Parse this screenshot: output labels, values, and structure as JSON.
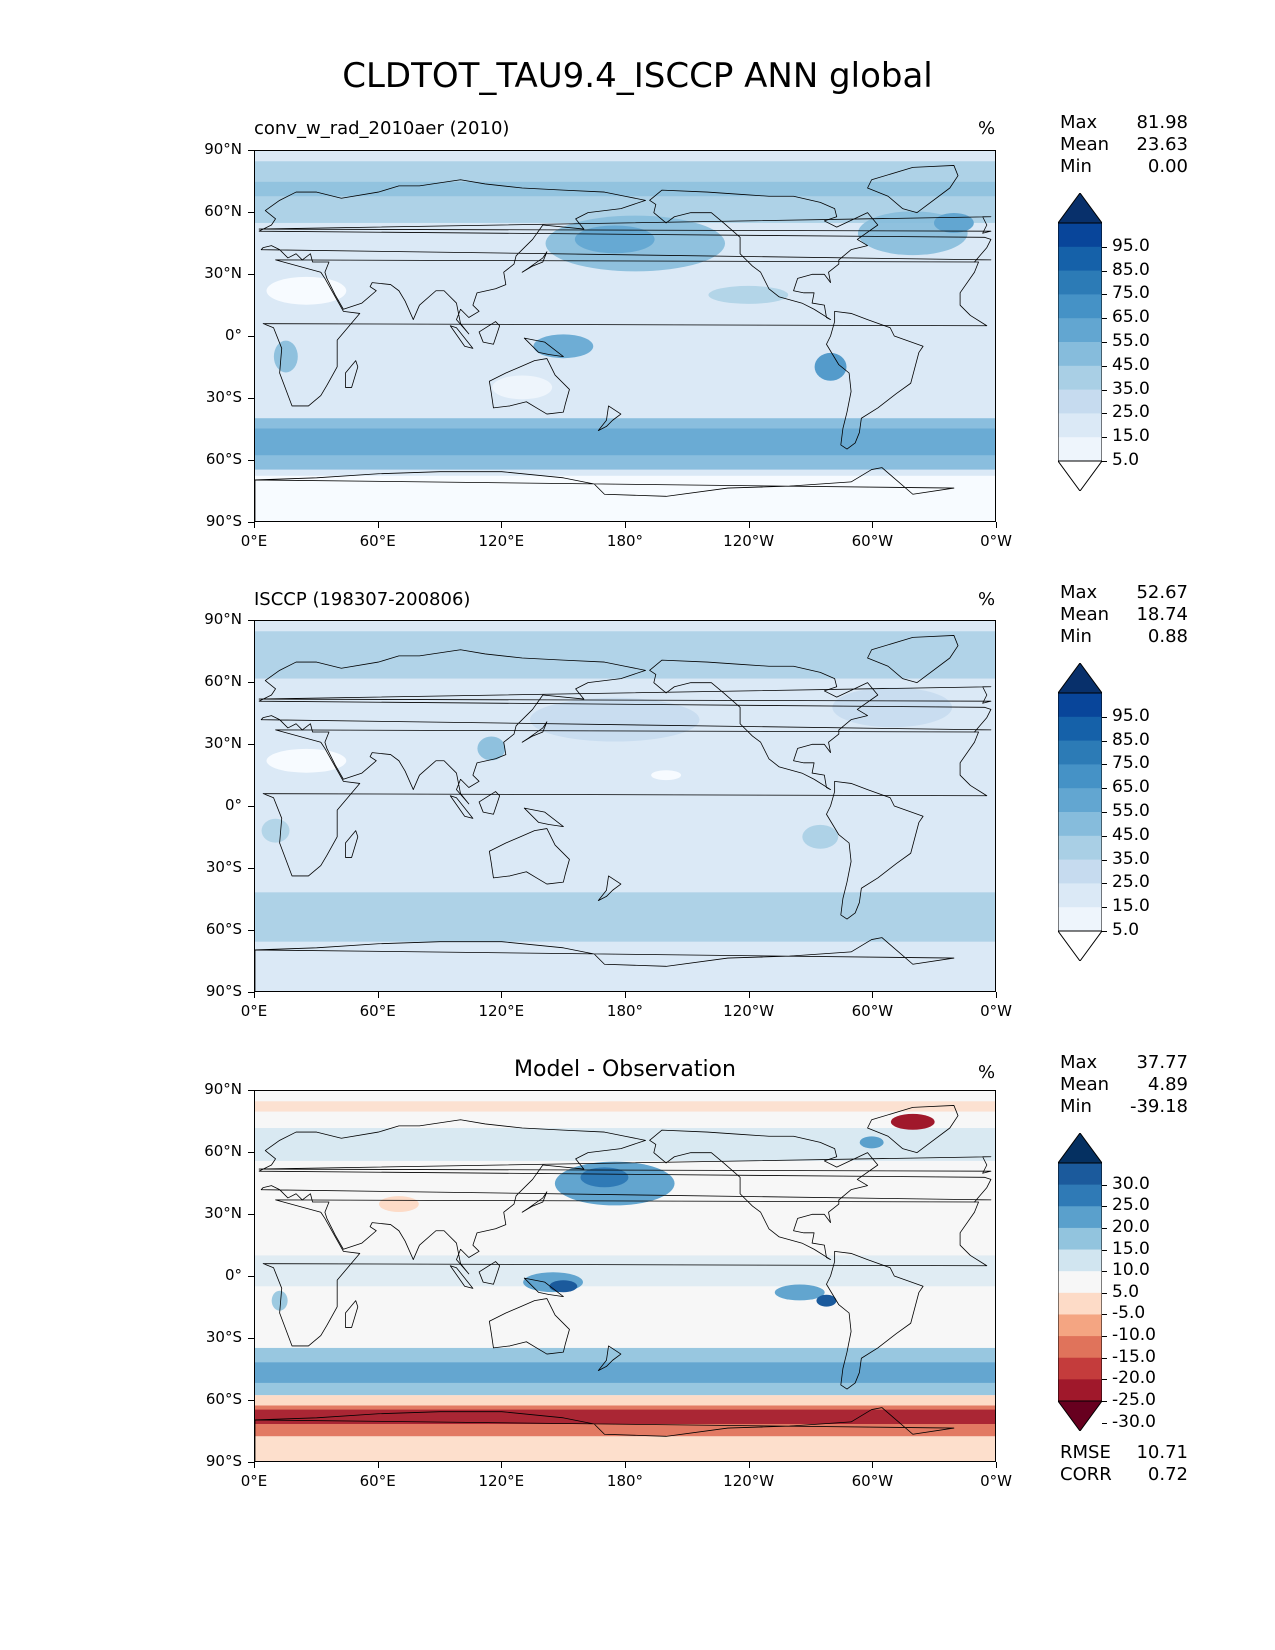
{
  "title": "CLDTOT_TAU9.4_ISCCP ANN global",
  "axes": {
    "y_ticks": [
      "90°N",
      "60°N",
      "30°N",
      "0°",
      "30°S",
      "60°S",
      "90°S"
    ],
    "x_ticks": [
      "0°E",
      "60°E",
      "120°E",
      "180°",
      "120°W",
      "60°W",
      "0°W"
    ]
  },
  "panels": [
    {
      "title": "conv_w_rad_2010aer (2010)",
      "units": "%",
      "stats": [
        {
          "label": "Max",
          "value": "81.98"
        },
        {
          "label": "Mean",
          "value": "23.63"
        },
        {
          "label": "Min",
          "value": "0.00"
        }
      ],
      "colorbar": {
        "labels": [
          "95.0",
          "85.0",
          "75.0",
          "65.0",
          "55.0",
          "45.0",
          "35.0",
          "25.0",
          "15.0",
          "5.0"
        ],
        "colors": [
          "#08306b",
          "#08459a",
          "#1561a9",
          "#2c7bb6",
          "#4592c6",
          "#62a6d1",
          "#86bcdc",
          "#a9cfe5",
          "#c6dbef",
          "#dbe9f6",
          "#eef5fc",
          "#ffffff"
        ]
      },
      "field_type": "model"
    },
    {
      "title": "ISCCP (198307-200806)",
      "units": "%",
      "stats": [
        {
          "label": "Max",
          "value": "52.67"
        },
        {
          "label": "Mean",
          "value": "18.74"
        },
        {
          "label": "Min",
          "value": "0.88"
        }
      ],
      "colorbar": {
        "labels": [
          "95.0",
          "85.0",
          "75.0",
          "65.0",
          "55.0",
          "45.0",
          "35.0",
          "25.0",
          "15.0",
          "5.0"
        ],
        "colors": [
          "#08306b",
          "#08459a",
          "#1561a9",
          "#2c7bb6",
          "#4592c6",
          "#62a6d1",
          "#86bcdc",
          "#a9cfe5",
          "#c6dbef",
          "#dbe9f6",
          "#eef5fc",
          "#ffffff"
        ]
      },
      "field_type": "obs"
    },
    {
      "title": "Model - Observation",
      "units": "%",
      "stats": [
        {
          "label": "Max",
          "value": "37.77"
        },
        {
          "label": "Mean",
          "value": "4.89"
        },
        {
          "label": "Min",
          "value": "-39.18"
        }
      ],
      "colorbar": {
        "labels": [
          "30.0",
          "25.0",
          "20.0",
          "15.0",
          "10.0",
          "5.0",
          "-5.0",
          "-10.0",
          "-15.0",
          "-20.0",
          "-25.0",
          "-30.0"
        ],
        "colors": [
          "#053061",
          "#1b5a9c",
          "#2f7ab6",
          "#5aa0cc",
          "#92c4de",
          "#d1e5f0",
          "#f7f7f7",
          "#fddbc7",
          "#f4a582",
          "#e0735b",
          "#c43c3c",
          "#a0182b",
          "#67001f"
        ]
      },
      "field_type": "diff",
      "extra_stats": [
        {
          "label": "RMSE",
          "value": "10.71"
        },
        {
          "label": "CORR",
          "value": "0.72"
        }
      ]
    }
  ]
}
